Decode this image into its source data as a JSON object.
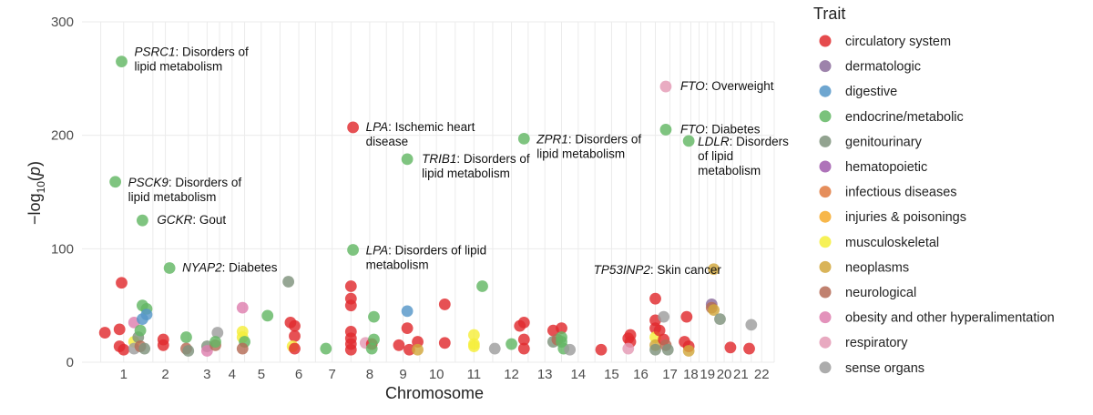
{
  "chart_data": {
    "type": "scatter",
    "xlabel": "Chromosome",
    "ylabel": "−log10(p)",
    "ylim": [
      0,
      300
    ],
    "y_ticks": [
      0,
      100,
      200,
      300
    ],
    "x_ticks": [
      "1",
      "2",
      "3",
      "4",
      "5",
      "6",
      "7",
      "8",
      "9",
      "10",
      "11",
      "12",
      "13",
      "14",
      "15",
      "16",
      "17",
      "18",
      "19",
      "20",
      "21",
      "22"
    ],
    "x_tick_positions": [
      1.0,
      2.0,
      3.0,
      3.6,
      4.3,
      5.2,
      6.0,
      6.9,
      7.7,
      8.5,
      9.4,
      10.3,
      11.1,
      11.9,
      12.7,
      13.4,
      14.1,
      14.6,
      15.0,
      15.4,
      15.8,
      16.3
    ],
    "grid_positions": [
      0.45,
      1.0,
      1.7,
      2.0,
      2.55,
      3.0,
      3.3,
      3.6,
      3.9,
      4.3,
      4.75,
      5.2,
      5.6,
      6.0,
      6.45,
      6.9,
      7.3,
      7.7,
      8.1,
      8.5,
      8.95,
      9.4,
      9.85,
      10.3,
      10.7,
      11.1,
      11.5,
      11.9,
      12.3,
      12.7,
      13.05,
      13.4,
      13.75,
      14.1,
      14.35,
      14.6,
      14.8,
      15.0,
      15.2,
      15.4,
      15.6,
      15.8,
      16.05,
      16.3,
      16.6
    ],
    "xlim": [
      0.0,
      16.6
    ],
    "legend": {
      "title": "Trait",
      "position": "right",
      "categories": [
        {
          "name": "circulatory system",
          "color": "#E02B2E"
        },
        {
          "name": "dermatologic",
          "color": "#8C6D9C"
        },
        {
          "name": "digestive",
          "color": "#5596C8"
        },
        {
          "name": "endocrine/metabolic",
          "color": "#63B764"
        },
        {
          "name": "genitourinary",
          "color": "#7F937C"
        },
        {
          "name": "hematopoietic",
          "color": "#A05BAD"
        },
        {
          "name": "infectious diseases",
          "color": "#E07A40"
        },
        {
          "name": "injuries & poisonings",
          "color": "#F6AA2B"
        },
        {
          "name": "musculoskeletal",
          "color": "#F5EE3A"
        },
        {
          "name": "neoplasms",
          "color": "#D2A73C"
        },
        {
          "name": "neurological",
          "color": "#B56B56"
        },
        {
          "name": "obesity and other hyperalimentation",
          "color": "#DE7FAF"
        },
        {
          "name": "respiratory",
          "color": "#E49AB5"
        },
        {
          "name": "sense organs",
          "color": "#9E9E9E"
        }
      ]
    },
    "annotations": [
      {
        "gene": "PSRC1",
        "lines": [
          ": Disorders of",
          "lipid metabolism"
        ]
      },
      {
        "gene": "PSCK9",
        "lines": [
          ": Disorders of",
          "lipid metabolism"
        ]
      },
      {
        "gene": "GCKR",
        "lines": [
          ": Gout"
        ]
      },
      {
        "gene": "NYAP2",
        "lines": [
          ": Diabetes"
        ]
      },
      {
        "gene": "LPA",
        "lines": [
          ": Ischemic heart",
          "disease"
        ]
      },
      {
        "gene": "TRIB1",
        "lines": [
          ": Disorders of",
          "lipid metabolism"
        ]
      },
      {
        "gene": "LPA",
        "lines": [
          ": Disorders of lipid",
          "metabolism"
        ]
      },
      {
        "gene": "ZPR1",
        "lines": [
          ": Disorders of",
          "lipid metabolism"
        ]
      },
      {
        "gene": "FTO",
        "lines": [
          ": Overweight"
        ]
      },
      {
        "gene": "FTO",
        "lines": [
          ": Diabetes"
        ]
      },
      {
        "gene": "LDLR",
        "lines": [
          ": Disorders",
          "of lipid",
          "metabolism"
        ]
      },
      {
        "gene": "TP53INP2",
        "lines": [
          ": Skin cancer"
        ]
      }
    ],
    "points": [
      {
        "x": 0.95,
        "y": 265,
        "c": "endocrine/metabolic"
      },
      {
        "x": 0.8,
        "y": 159,
        "c": "endocrine/metabolic"
      },
      {
        "x": 1.45,
        "y": 125,
        "c": "endocrine/metabolic"
      },
      {
        "x": 2.1,
        "y": 83,
        "c": "endocrine/metabolic"
      },
      {
        "x": 6.5,
        "y": 207,
        "c": "circulatory system"
      },
      {
        "x": 7.8,
        "y": 179,
        "c": "endocrine/metabolic"
      },
      {
        "x": 6.5,
        "y": 99,
        "c": "endocrine/metabolic"
      },
      {
        "x": 10.6,
        "y": 197,
        "c": "endocrine/metabolic"
      },
      {
        "x": 14.0,
        "y": 243,
        "c": "respiratory"
      },
      {
        "x": 14.0,
        "y": 205,
        "c": "endocrine/metabolic"
      },
      {
        "x": 14.55,
        "y": 195,
        "c": "endocrine/metabolic"
      },
      {
        "x": 15.15,
        "y": 82,
        "c": "neoplasms"
      },
      {
        "x": 0.55,
        "y": 26,
        "c": "circulatory system"
      },
      {
        "x": 0.95,
        "y": 70,
        "c": "circulatory system"
      },
      {
        "x": 0.9,
        "y": 29,
        "c": "circulatory system"
      },
      {
        "x": 0.9,
        "y": 14,
        "c": "circulatory system"
      },
      {
        "x": 1.0,
        "y": 11,
        "c": "circulatory system"
      },
      {
        "x": 1.25,
        "y": 35,
        "c": "obesity and other hyperalimentation"
      },
      {
        "x": 1.25,
        "y": 18,
        "c": "musculoskeletal"
      },
      {
        "x": 1.25,
        "y": 12,
        "c": "sense organs"
      },
      {
        "x": 1.35,
        "y": 22,
        "c": "genitourinary"
      },
      {
        "x": 1.4,
        "y": 28,
        "c": "endocrine/metabolic"
      },
      {
        "x": 1.4,
        "y": 14,
        "c": "neurological"
      },
      {
        "x": 1.45,
        "y": 50,
        "c": "endocrine/metabolic"
      },
      {
        "x": 1.45,
        "y": 38,
        "c": "digestive"
      },
      {
        "x": 1.55,
        "y": 47,
        "c": "endocrine/metabolic"
      },
      {
        "x": 1.55,
        "y": 42,
        "c": "digestive"
      },
      {
        "x": 1.5,
        "y": 12,
        "c": "genitourinary"
      },
      {
        "x": 1.95,
        "y": 20,
        "c": "circulatory system"
      },
      {
        "x": 1.95,
        "y": 15,
        "c": "circulatory system"
      },
      {
        "x": 2.5,
        "y": 22,
        "c": "endocrine/metabolic"
      },
      {
        "x": 2.5,
        "y": 12,
        "c": "neurological"
      },
      {
        "x": 2.55,
        "y": 10,
        "c": "genitourinary"
      },
      {
        "x": 3.0,
        "y": 14,
        "c": "genitourinary"
      },
      {
        "x": 3.0,
        "y": 10,
        "c": "obesity and other hyperalimentation"
      },
      {
        "x": 3.2,
        "y": 15,
        "c": "neurological"
      },
      {
        "x": 3.25,
        "y": 26,
        "c": "sense organs"
      },
      {
        "x": 3.2,
        "y": 18,
        "c": "endocrine/metabolic"
      },
      {
        "x": 3.85,
        "y": 48,
        "c": "obesity and other hyperalimentation"
      },
      {
        "x": 3.85,
        "y": 27,
        "c": "musculoskeletal"
      },
      {
        "x": 3.85,
        "y": 22,
        "c": "musculoskeletal"
      },
      {
        "x": 3.9,
        "y": 18,
        "c": "endocrine/metabolic"
      },
      {
        "x": 3.85,
        "y": 12,
        "c": "neurological"
      },
      {
        "x": 4.45,
        "y": 41,
        "c": "endocrine/metabolic"
      },
      {
        "x": 4.95,
        "y": 71,
        "c": "genitourinary"
      },
      {
        "x": 5.0,
        "y": 35,
        "c": "circulatory system"
      },
      {
        "x": 5.1,
        "y": 32,
        "c": "circulatory system"
      },
      {
        "x": 5.1,
        "y": 23,
        "c": "circulatory system"
      },
      {
        "x": 5.05,
        "y": 14,
        "c": "musculoskeletal"
      },
      {
        "x": 5.1,
        "y": 12,
        "c": "circulatory system"
      },
      {
        "x": 5.85,
        "y": 12,
        "c": "endocrine/metabolic"
      },
      {
        "x": 6.45,
        "y": 67,
        "c": "circulatory system"
      },
      {
        "x": 6.45,
        "y": 56,
        "c": "circulatory system"
      },
      {
        "x": 6.45,
        "y": 50,
        "c": "circulatory system"
      },
      {
        "x": 6.45,
        "y": 27,
        "c": "circulatory system"
      },
      {
        "x": 6.45,
        "y": 21,
        "c": "circulatory system"
      },
      {
        "x": 6.45,
        "y": 16,
        "c": "circulatory system"
      },
      {
        "x": 6.45,
        "y": 11,
        "c": "circulatory system"
      },
      {
        "x": 6.8,
        "y": 17,
        "c": "respiratory"
      },
      {
        "x": 6.95,
        "y": 16,
        "c": "circulatory system"
      },
      {
        "x": 6.95,
        "y": 12,
        "c": "endocrine/metabolic"
      },
      {
        "x": 7.0,
        "y": 40,
        "c": "endocrine/metabolic"
      },
      {
        "x": 7.0,
        "y": 20,
        "c": "endocrine/metabolic"
      },
      {
        "x": 7.6,
        "y": 15,
        "c": "circulatory system"
      },
      {
        "x": 7.8,
        "y": 45,
        "c": "digestive"
      },
      {
        "x": 7.8,
        "y": 30,
        "c": "circulatory system"
      },
      {
        "x": 7.85,
        "y": 11,
        "c": "circulatory system"
      },
      {
        "x": 8.05,
        "y": 18,
        "c": "circulatory system"
      },
      {
        "x": 8.05,
        "y": 11,
        "c": "neoplasms"
      },
      {
        "x": 8.7,
        "y": 51,
        "c": "circulatory system"
      },
      {
        "x": 8.7,
        "y": 17,
        "c": "circulatory system"
      },
      {
        "x": 9.4,
        "y": 24,
        "c": "musculoskeletal"
      },
      {
        "x": 9.4,
        "y": 16,
        "c": "musculoskeletal"
      },
      {
        "x": 9.4,
        "y": 14,
        "c": "musculoskeletal"
      },
      {
        "x": 9.6,
        "y": 67,
        "c": "endocrine/metabolic"
      },
      {
        "x": 9.9,
        "y": 12,
        "c": "sense organs"
      },
      {
        "x": 10.3,
        "y": 16,
        "c": "endocrine/metabolic"
      },
      {
        "x": 10.5,
        "y": 32,
        "c": "circulatory system"
      },
      {
        "x": 10.6,
        "y": 35,
        "c": "circulatory system"
      },
      {
        "x": 10.6,
        "y": 20,
        "c": "circulatory system"
      },
      {
        "x": 10.6,
        "y": 12,
        "c": "circulatory system"
      },
      {
        "x": 11.3,
        "y": 28,
        "c": "circulatory system"
      },
      {
        "x": 11.3,
        "y": 18,
        "c": "genitourinary"
      },
      {
        "x": 11.4,
        "y": 20,
        "c": "neurological"
      },
      {
        "x": 11.5,
        "y": 30,
        "c": "circulatory system"
      },
      {
        "x": 11.5,
        "y": 22,
        "c": "endocrine/metabolic"
      },
      {
        "x": 11.5,
        "y": 18,
        "c": "endocrine/metabolic"
      },
      {
        "x": 11.55,
        "y": 12,
        "c": "endocrine/metabolic"
      },
      {
        "x": 11.7,
        "y": 11,
        "c": "sense organs"
      },
      {
        "x": 12.45,
        "y": 11,
        "c": "circulatory system"
      },
      {
        "x": 13.1,
        "y": 21,
        "c": "circulatory system"
      },
      {
        "x": 13.15,
        "y": 18,
        "c": "circulatory system"
      },
      {
        "x": 13.1,
        "y": 12,
        "c": "respiratory"
      },
      {
        "x": 13.15,
        "y": 24,
        "c": "circulatory system"
      },
      {
        "x": 13.75,
        "y": 56,
        "c": "circulatory system"
      },
      {
        "x": 13.75,
        "y": 37,
        "c": "circulatory system"
      },
      {
        "x": 13.75,
        "y": 30,
        "c": "circulatory system"
      },
      {
        "x": 13.75,
        "y": 22,
        "c": "musculoskeletal"
      },
      {
        "x": 13.75,
        "y": 15,
        "c": "neoplasms"
      },
      {
        "x": 13.75,
        "y": 11,
        "c": "genitourinary"
      },
      {
        "x": 13.85,
        "y": 28,
        "c": "circulatory system"
      },
      {
        "x": 13.95,
        "y": 40,
        "c": "sense organs"
      },
      {
        "x": 13.95,
        "y": 20,
        "c": "circulatory system"
      },
      {
        "x": 14.0,
        "y": 15,
        "c": "neurological"
      },
      {
        "x": 14.05,
        "y": 11,
        "c": "genitourinary"
      },
      {
        "x": 14.45,
        "y": 18,
        "c": "circulatory system"
      },
      {
        "x": 14.5,
        "y": 40,
        "c": "circulatory system"
      },
      {
        "x": 14.55,
        "y": 14,
        "c": "circulatory system"
      },
      {
        "x": 14.55,
        "y": 10,
        "c": "neoplasms"
      },
      {
        "x": 15.1,
        "y": 51,
        "c": "dermatologic"
      },
      {
        "x": 15.1,
        "y": 48,
        "c": "neurological"
      },
      {
        "x": 15.15,
        "y": 46,
        "c": "neoplasms"
      },
      {
        "x": 15.3,
        "y": 38,
        "c": "genitourinary"
      },
      {
        "x": 15.55,
        "y": 13,
        "c": "circulatory system"
      },
      {
        "x": 16.0,
        "y": 12,
        "c": "circulatory system"
      },
      {
        "x": 16.05,
        "y": 33,
        "c": "sense organs"
      }
    ]
  }
}
